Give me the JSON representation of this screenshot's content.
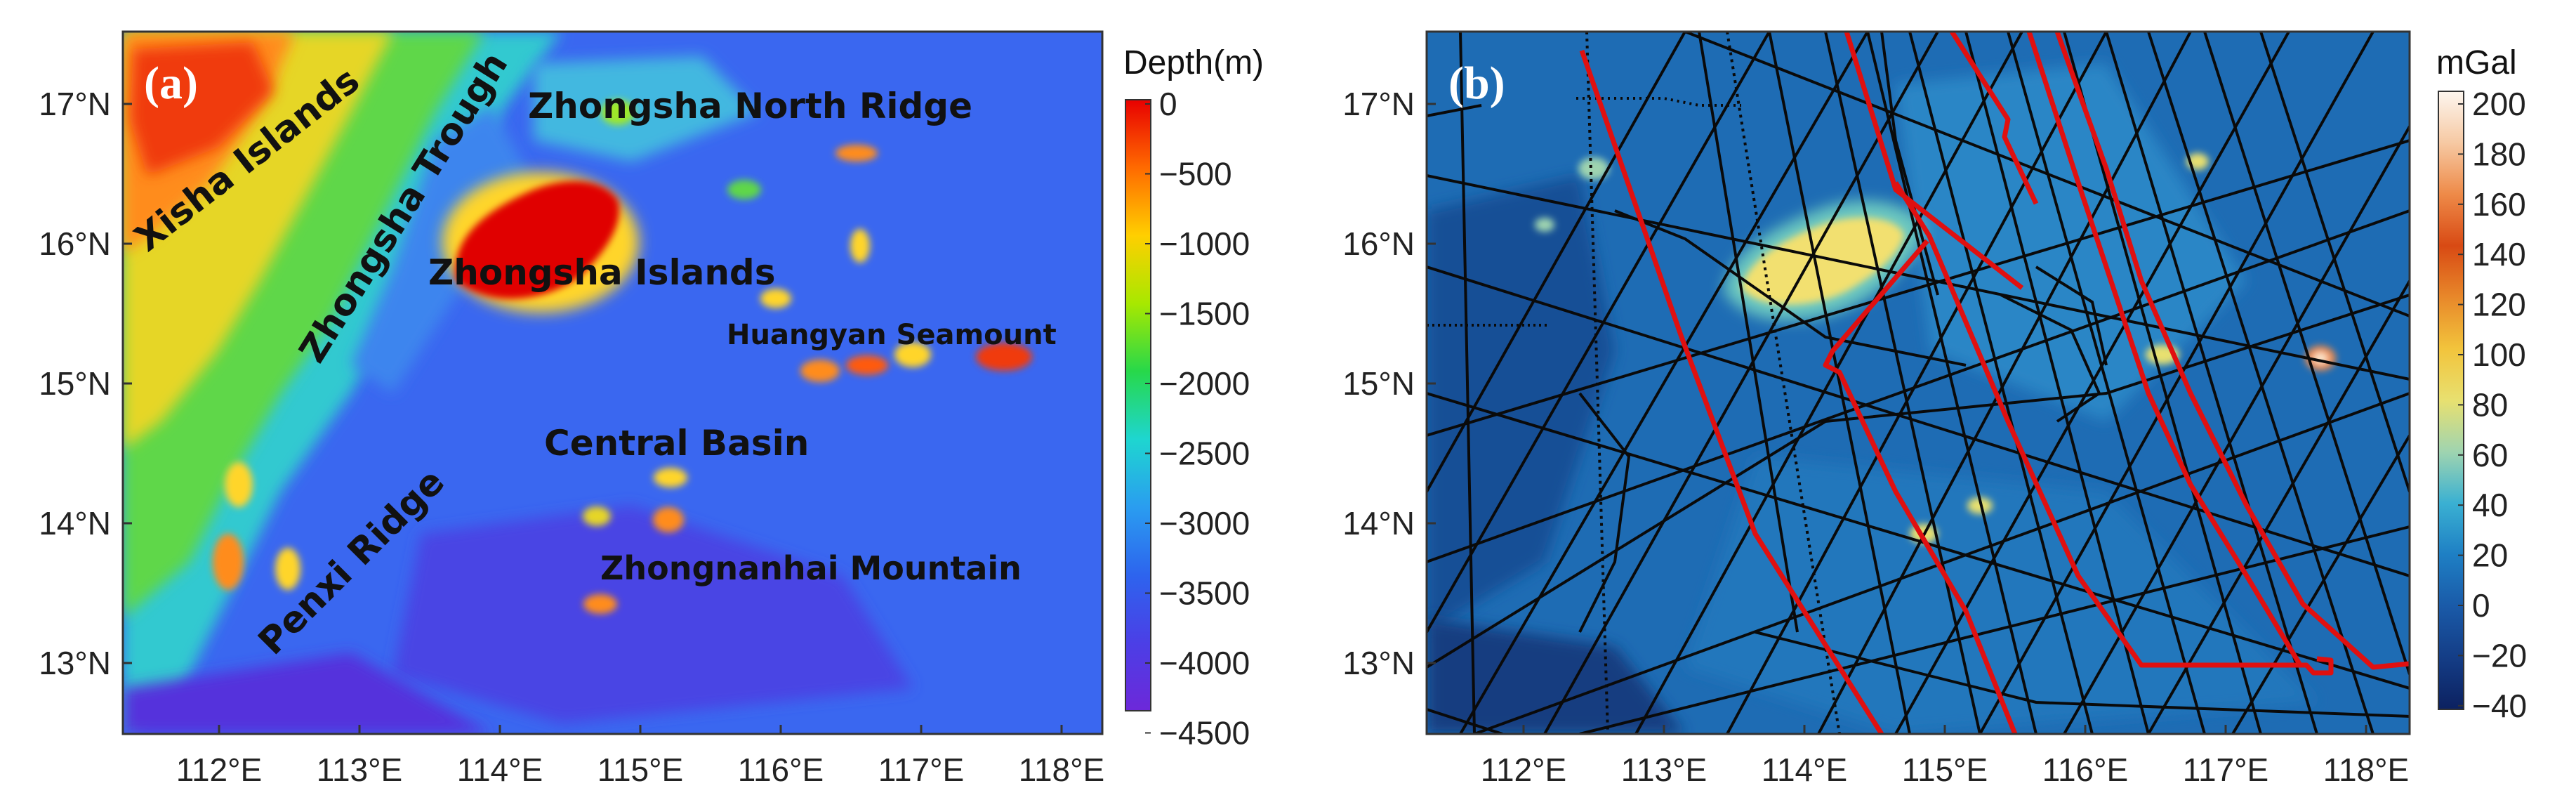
{
  "panel_a": {
    "letter": "(a)",
    "colorbar": {
      "title": "Depth(m)",
      "labels": [
        "0",
        "−500",
        "−1000",
        "−1500",
        "−2000",
        "−2500",
        "−3000",
        "−3500",
        "−4000",
        "−4500"
      ],
      "stops": [
        "#e80000",
        "#ff6a00",
        "#ffcf00",
        "#a8e800",
        "#27d84a",
        "#1ed6d0",
        "#2a9df0",
        "#2d64ee",
        "#4b3fe6",
        "#6d28d9"
      ]
    },
    "x_ticks": [
      "112°E",
      "113°E",
      "114°E",
      "115°E",
      "116°E",
      "117°E",
      "118°E"
    ],
    "y_ticks": [
      "17°N",
      "16°N",
      "15°N",
      "14°N",
      "13°N"
    ],
    "features": {
      "xisha": "Xisha Islands",
      "zhongsha_trough": "Zhongsha Trough",
      "zhongsha_north_ridge": "Zhongsha North Ridge",
      "zhongsha_islands": "Zhongsha Islands",
      "huangyan": "Huangyan Seamount",
      "central_basin": "Central Basin",
      "penxi": "Penxi Ridge",
      "zhongnanhai": "Zhongnanhai Mountain"
    }
  },
  "panel_b": {
    "letter": "(b)",
    "colorbar": {
      "title": "mGal",
      "labels": [
        "200",
        "180",
        "160",
        "140",
        "120",
        "100",
        "80",
        "60",
        "40",
        "20",
        "0",
        "−20",
        "−40"
      ],
      "stops": [
        "#fdf6ef",
        "#f6c9a3",
        "#ee8a48",
        "#d84a14",
        "#e8882a",
        "#f2c43c",
        "#e8e070",
        "#9fd4b0",
        "#3ab0d2",
        "#1e7fc4",
        "#1a5aa8",
        "#143d86",
        "#0c2160"
      ]
    },
    "x_ticks": [
      "112°E",
      "113°E",
      "114°E",
      "115°E",
      "116°E",
      "117°E",
      "118°E"
    ],
    "y_ticks": [
      "17°N",
      "16°N",
      "15°N",
      "14°N",
      "13°N"
    ]
  },
  "colors": {
    "survey_line": "#0a0a0a",
    "highlight_track": "#e01010",
    "frame": "#333333"
  }
}
